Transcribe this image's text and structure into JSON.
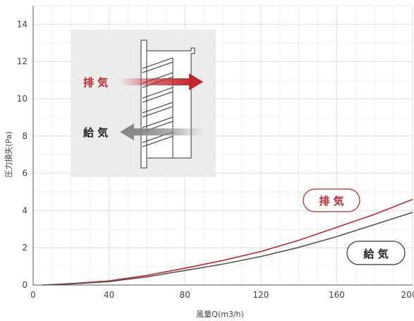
{
  "chart_data": {
    "type": "line",
    "xlabel": "風量Q(m3/h)",
    "ylabel": "圧力損失(Pa)",
    "xlim": [
      0,
      200
    ],
    "ylim": [
      0,
      15
    ],
    "xticks": [
      0,
      40,
      80,
      120,
      160,
      200
    ],
    "yticks": [
      0,
      2,
      4,
      6,
      8,
      10,
      12,
      14
    ],
    "grid": true,
    "series": [
      {
        "name": "排 気",
        "color": "#c0272d",
        "x": [
          5,
          20,
          40,
          60,
          80,
          100,
          120,
          140,
          160,
          180,
          200
        ],
        "y": [
          0.0,
          0.08,
          0.22,
          0.52,
          0.9,
          1.32,
          1.8,
          2.4,
          3.1,
          3.8,
          4.6
        ]
      },
      {
        "name": "給 気",
        "color": "#555555",
        "x": [
          5,
          20,
          40,
          60,
          80,
          100,
          120,
          140,
          160,
          180,
          200
        ],
        "y": [
          0.0,
          0.06,
          0.18,
          0.44,
          0.78,
          1.12,
          1.53,
          2.02,
          2.6,
          3.25,
          3.9
        ]
      }
    ],
    "legend": {
      "placement": "right",
      "labels": [
        "排 気",
        "給 気"
      ]
    },
    "inset": {
      "exhaust_label": "排 気",
      "supply_label": "給 気",
      "exhaust_color": "#c0272d",
      "supply_color": "#888888",
      "background": "#ececec"
    }
  }
}
